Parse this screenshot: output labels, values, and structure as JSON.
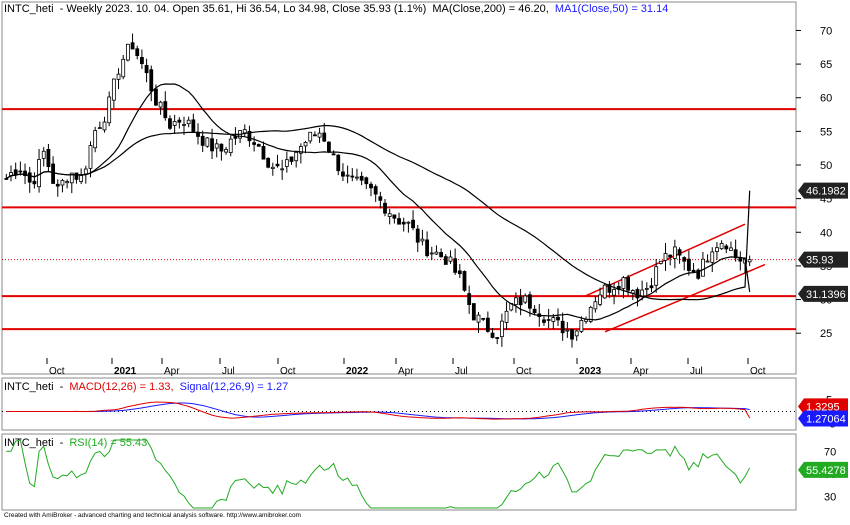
{
  "header": {
    "symbol": "INTC_heti",
    "main_info": "- Weekly 2023. 10. 04. Open 35.61, Hi 36.54, Lo 34.98, Close 35.93 (1.1%)",
    "ma200_label": "MA(Close,200) = 46.20,",
    "ma50_label": "MA1(Close,50) = 31.14",
    "macd_label": "MACD(12,26) = 1.33,",
    "signal_label": "Signal(12,26,9) = 1.27",
    "rsi_label": "RSI(14) = 55.43"
  },
  "footer": "Created with AmiBroker - advanced charting and technical analysis software. http://www.amibroker.com",
  "price_axis": {
    "ticks": [
      "70",
      "65",
      "60",
      "55",
      "50",
      "45",
      "40",
      "35",
      "30",
      "25"
    ]
  },
  "macd_axis": {
    "ticks": [
      "5",
      "-5"
    ]
  },
  "rsi_axis": {
    "ticks": [
      "70",
      "50",
      "30"
    ]
  },
  "x_axis": {
    "labels": [
      "Oct",
      "2021",
      "Apr",
      "Jul",
      "Oct",
      "2022",
      "Apr",
      "Jul",
      "Oct",
      "2023",
      "Apr",
      "Jul",
      "Oct"
    ]
  },
  "badges": {
    "ma200": "46.1982",
    "close": "35.93",
    "ma50": "31.1396",
    "macd": "1.3295",
    "signal": "1.27064",
    "rsi": "55.4278"
  },
  "colors": {
    "candle": "#000000",
    "ma": "#000000",
    "resistance": "#e00000",
    "macd": "#e00000",
    "signal": "#1a1aff",
    "rsi": "#22aa22",
    "badge_dark": "#222222",
    "badge_red": "#e00000",
    "badge_blue": "#1a1aff",
    "badge_green": "#22aa22"
  },
  "chart_data": {
    "type": "candlestick",
    "title": "INTC_heti - Weekly 2023. 10. 04.",
    "ylim": [
      22.5,
      72
    ],
    "horizontal_levels": [
      58.3,
      43.7,
      30.5,
      25.6
    ],
    "channel": {
      "lower": [
        [
          25.2,
          35.2
        ]
      ],
      "upper": [
        [
          30.5,
          41.2
        ]
      ]
    },
    "last": {
      "open": 35.61,
      "high": 36.54,
      "low": 34.98,
      "close": 35.93,
      "change_pct": 1.1
    },
    "ma200_last": 46.2,
    "ma50_last": 31.14,
    "price_path": [
      48,
      50,
      47,
      52,
      46,
      49,
      48,
      55,
      58,
      65,
      68,
      64,
      59,
      56,
      57,
      55,
      53,
      52,
      54,
      55,
      53,
      50,
      49,
      52,
      54,
      55,
      51,
      48,
      47,
      46,
      44,
      42,
      41,
      38,
      37,
      36,
      33,
      28,
      26,
      25,
      29,
      30,
      29,
      27,
      26,
      25,
      28,
      31,
      32,
      33,
      31,
      32,
      36,
      37,
      35,
      34,
      38,
      39,
      36,
      35.93
    ],
    "macd_last": 1.33,
    "signal_last": 1.27,
    "rsi_last": 55.43
  }
}
